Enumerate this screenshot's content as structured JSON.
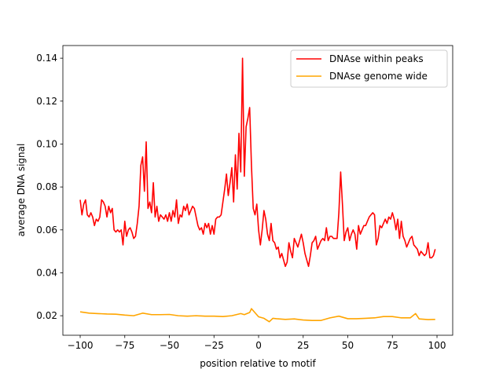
{
  "chart_data": {
    "type": "line",
    "title": "",
    "xlabel": "position relative to motif",
    "ylabel": "average DNA signal",
    "xlim": [
      -109.7,
      108.8
    ],
    "ylim": [
      0.0109,
      0.1459
    ],
    "xticks": [
      -100,
      -75,
      -50,
      -25,
      0,
      25,
      50,
      75,
      100
    ],
    "xtick_labels": [
      "−100",
      "−75",
      "−50",
      "−25",
      "0",
      "25",
      "50",
      "75",
      "100"
    ],
    "yticks": [
      0.02,
      0.04,
      0.06,
      0.08,
      0.1,
      0.12,
      0.14
    ],
    "ytick_labels": [
      "0.02",
      "0.04",
      "0.06",
      "0.08",
      "0.10",
      "0.12",
      "0.14"
    ],
    "grid": false,
    "legend_position": "top-right",
    "series": [
      {
        "name": "DNAse within peaks",
        "color": "#ff0000",
        "x_start": -100,
        "x_step": 1,
        "values": [
          0.074,
          0.067,
          0.072,
          0.074,
          0.067,
          0.066,
          0.068,
          0.066,
          0.062,
          0.065,
          0.064,
          0.066,
          0.074,
          0.073,
          0.071,
          0.066,
          0.071,
          0.068,
          0.07,
          0.06,
          0.059,
          0.06,
          0.059,
          0.06,
          0.053,
          0.064,
          0.057,
          0.06,
          0.061,
          0.059,
          0.056,
          0.057,
          0.063,
          0.071,
          0.09,
          0.094,
          0.078,
          0.101,
          0.07,
          0.073,
          0.068,
          0.082,
          0.066,
          0.071,
          0.064,
          0.067,
          0.066,
          0.065,
          0.067,
          0.064,
          0.068,
          0.064,
          0.069,
          0.066,
          0.074,
          0.063,
          0.067,
          0.066,
          0.071,
          0.069,
          0.072,
          0.067,
          0.069,
          0.071,
          0.07,
          0.066,
          0.062,
          0.06,
          0.061,
          0.058,
          0.063,
          0.061,
          0.063,
          0.058,
          0.062,
          0.058,
          0.065,
          0.066,
          0.066,
          0.067,
          0.073,
          0.079,
          0.086,
          0.076,
          0.082,
          0.089,
          0.073,
          0.095,
          0.079,
          0.105,
          0.087,
          0.14,
          0.085,
          0.108,
          0.112,
          0.117,
          0.09,
          0.07,
          0.067,
          0.072,
          0.06,
          0.053,
          0.06,
          0.069,
          0.065,
          0.058,
          0.055,
          0.063,
          0.055,
          0.054,
          0.051,
          0.052,
          0.047,
          0.049,
          0.046,
          0.043,
          0.045,
          0.054,
          0.05,
          0.047,
          0.056,
          0.054,
          0.052,
          0.055,
          0.058,
          0.054,
          0.049,
          0.046,
          0.043,
          0.048,
          0.054,
          0.055,
          0.057,
          0.051,
          0.053,
          0.055,
          0.056,
          0.055,
          0.061,
          0.055,
          0.057,
          0.057,
          0.056,
          0.056,
          0.056,
          0.068,
          0.087,
          0.072,
          0.055,
          0.059,
          0.061,
          0.055,
          0.058,
          0.06,
          0.058,
          0.051,
          0.062,
          0.058,
          0.06,
          0.062,
          0.062,
          0.064,
          0.066,
          0.067,
          0.068,
          0.067,
          0.053,
          0.056,
          0.062,
          0.061,
          0.063,
          0.065,
          0.063,
          0.066,
          0.065,
          0.068,
          0.065,
          0.06,
          0.065,
          0.056,
          0.064,
          0.057,
          0.055,
          0.052,
          0.054,
          0.056,
          0.057,
          0.053,
          0.052,
          0.051,
          0.048,
          0.05,
          0.049,
          0.048,
          0.049,
          0.054,
          0.047,
          0.047,
          0.048,
          0.051
        ]
      },
      {
        "name": "DNAse genome wide",
        "color": "#ffa500",
        "x": [
          -100,
          -95,
          -90,
          -85,
          -80,
          -75,
          -70,
          -65,
          -60,
          -55,
          -50,
          -45,
          -40,
          -35,
          -30,
          -25,
          -20,
          -15,
          -10,
          -8,
          -5,
          -4,
          0,
          3,
          6,
          8,
          10,
          15,
          20,
          25,
          30,
          35,
          40,
          45,
          50,
          55,
          60,
          65,
          70,
          75,
          80,
          85,
          88,
          90,
          95,
          99
        ],
        "values": [
          0.0218,
          0.0212,
          0.021,
          0.0208,
          0.0207,
          0.0203,
          0.02,
          0.0212,
          0.0205,
          0.0205,
          0.0206,
          0.02,
          0.0198,
          0.02,
          0.0198,
          0.0198,
          0.0196,
          0.02,
          0.021,
          0.0205,
          0.0215,
          0.0233,
          0.0195,
          0.0188,
          0.0172,
          0.0188,
          0.0186,
          0.0183,
          0.0185,
          0.018,
          0.0178,
          0.0178,
          0.019,
          0.0198,
          0.0186,
          0.0186,
          0.0188,
          0.019,
          0.0196,
          0.0196,
          0.019,
          0.019,
          0.021,
          0.0185,
          0.0182,
          0.0183
        ]
      }
    ]
  }
}
